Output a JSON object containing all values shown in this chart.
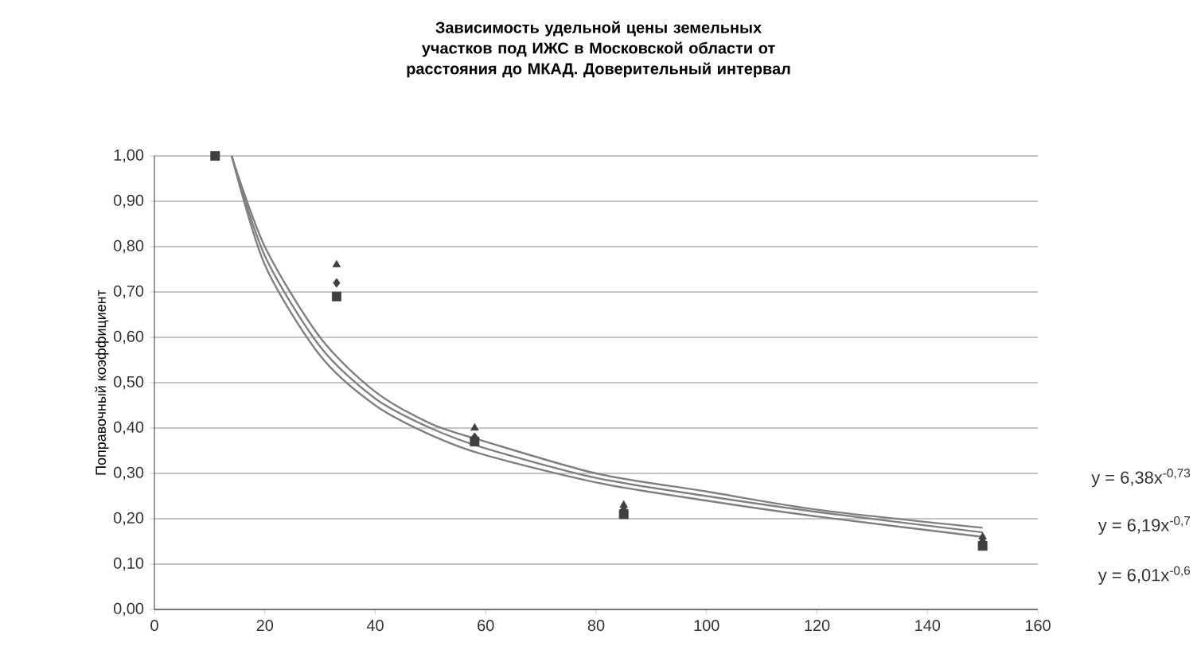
{
  "chart_data": {
    "type": "scatter",
    "title": "Зависимость удельной цены земельных участков под ИЖС в Московской области от расстояния до МКАД. Доверительный интервал",
    "ylabel": "Поправочный коэффициент",
    "xlim": [
      0,
      160
    ],
    "xticks": [
      0,
      20,
      40,
      60,
      80,
      100,
      120,
      140,
      160
    ],
    "ylim": [
      0,
      1
    ],
    "yticks": [
      {
        "value": 0,
        "label": "0,00"
      },
      {
        "value": 0.1,
        "label": "0,10"
      },
      {
        "value": 0.2,
        "label": "0,20"
      },
      {
        "value": 0.3,
        "label": "0,30"
      },
      {
        "value": 0.4,
        "label": "0,40"
      },
      {
        "value": 0.5,
        "label": "0,50"
      },
      {
        "value": 0.6,
        "label": "0,60"
      },
      {
        "value": 0.7,
        "label": "0,70"
      },
      {
        "value": 0.8,
        "label": "0,80"
      },
      {
        "value": 0.9,
        "label": "0,90"
      },
      {
        "value": 1,
        "label": "1,00"
      }
    ],
    "grid": "y",
    "series": [
      {
        "marker": "square",
        "color": "#404040",
        "x": [
          11,
          33,
          58,
          85,
          150
        ],
        "values": [
          1.0,
          0.69,
          0.37,
          0.21,
          0.14
        ]
      },
      {
        "marker": "diamond",
        "color": "#404040",
        "x": [
          33,
          58,
          85,
          150
        ],
        "values": [
          0.72,
          0.38,
          0.22,
          0.15
        ]
      },
      {
        "marker": "triangle",
        "color": "#404040",
        "x": [
          33,
          58,
          85,
          150
        ],
        "values": [
          0.76,
          0.4,
          0.23,
          0.16
        ]
      },
      {
        "type": "line",
        "marker": "none",
        "color": "#808080",
        "x": [
          14,
          20,
          30,
          40,
          50,
          60,
          80,
          100,
          120,
          150
        ],
        "values": [
          1.0,
          0.8,
          0.6,
          0.48,
          0.41,
          0.37,
          0.3,
          0.26,
          0.22,
          0.18
        ]
      },
      {
        "type": "line",
        "marker": "none",
        "color": "#808080",
        "x": [
          14,
          20,
          30,
          40,
          50,
          60,
          80,
          100,
          120,
          150
        ],
        "values": [
          1.0,
          0.78,
          0.58,
          0.465,
          0.4,
          0.355,
          0.29,
          0.25,
          0.215,
          0.17
        ]
      },
      {
        "type": "line",
        "marker": "none",
        "color": "#808080",
        "x": [
          14,
          20,
          30,
          40,
          50,
          60,
          80,
          100,
          120,
          150
        ],
        "values": [
          1.0,
          0.76,
          0.56,
          0.45,
          0.385,
          0.34,
          0.28,
          0.24,
          0.205,
          0.16
        ]
      }
    ],
    "annotations": [
      "y = 6,38x$^{-0,73}$",
      "y = 6,19x$^{-0,7}$",
      "y = 6,01x$^{-0,6}$"
    ]
  }
}
